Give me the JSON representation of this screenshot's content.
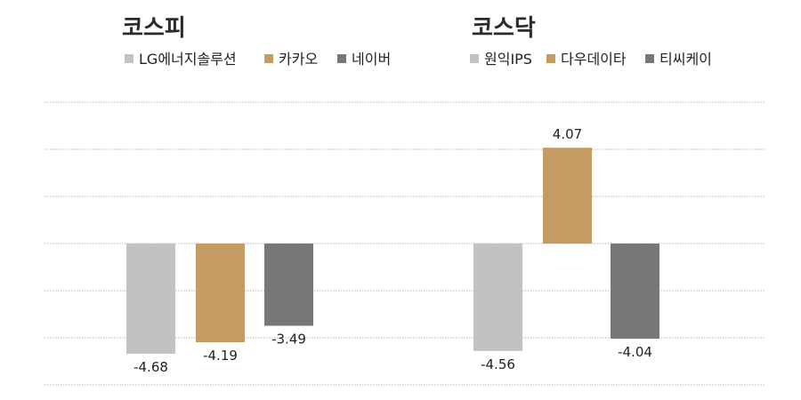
{
  "chart_data": [
    {
      "type": "bar",
      "title": "코스피",
      "categories": [
        "LG에너지솔루션",
        "카카오",
        "네이버"
      ],
      "values": [
        -4.68,
        -4.19,
        -3.49
      ],
      "value_labels": [
        "-4.68",
        "-4.19",
        "-3.49"
      ],
      "colors": [
        "#c2c2c2",
        "#c49b63",
        "#777777"
      ],
      "legend": [
        "LG에너지솔루션",
        "카카오",
        "네이버"
      ],
      "ylim": [
        -6,
        6
      ],
      "grid": true,
      "legend_position": "top"
    },
    {
      "type": "bar",
      "title": "코스닥",
      "categories": [
        "원익IPS",
        "다우데이타",
        "티씨케이"
      ],
      "values": [
        -4.56,
        4.07,
        -4.04
      ],
      "value_labels": [
        "-4.56",
        "4.07",
        "-4.04"
      ],
      "colors": [
        "#c2c2c2",
        "#c49b63",
        "#777777"
      ],
      "legend": [
        "원익IPS",
        "다우데이타",
        "티씨케이"
      ],
      "ylim": [
        -6,
        6
      ],
      "grid": true,
      "legend_position": "top"
    }
  ]
}
